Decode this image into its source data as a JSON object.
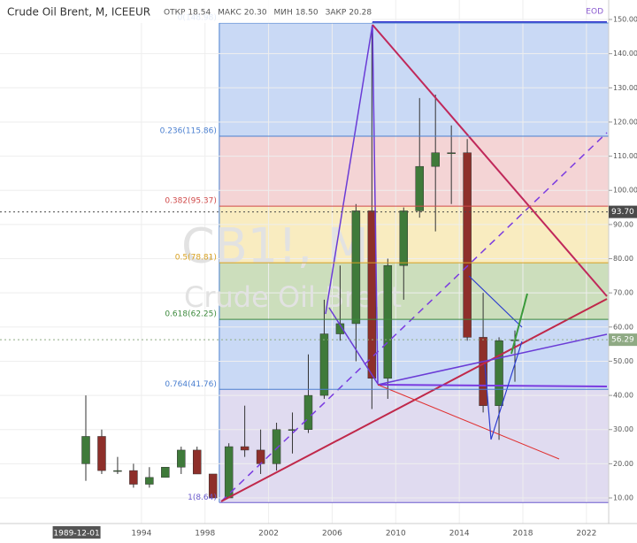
{
  "header": {
    "symbol": "Crude Oil Brent, M, ICEEUR",
    "ohlc": [
      {
        "name": "ОТКР",
        "value": "18.54"
      },
      {
        "name": "МАКС",
        "value": "20.30"
      },
      {
        "name": "МИН",
        "value": "18.50"
      },
      {
        "name": "ЗАКР",
        "value": "20.28"
      }
    ],
    "eod": "EOD"
  },
  "watermark": {
    "ticker": "CB1!, M",
    "name": "Crude Oil Brent"
  },
  "chart_data": {
    "type": "candlestick",
    "x": [
      1990.5,
      1991.5,
      1992.5,
      1993.5,
      1994.5,
      1995.5,
      1996.5,
      1997.5,
      1998.5,
      1999.5,
      2000.5,
      2001.5,
      2002.5,
      2003.5,
      2004.5,
      2005.5,
      2006.5,
      2007.5,
      2008.5,
      2009.5,
      2010.5,
      2011.5,
      2012.5,
      2013.5,
      2014.5,
      2015.5,
      2016.5,
      2017.5
    ],
    "open": [
      20,
      28,
      18,
      18,
      14,
      16,
      19,
      24,
      17,
      10,
      25,
      24,
      20,
      30,
      30,
      40,
      58,
      61,
      94,
      45,
      78,
      94,
      107,
      111,
      111,
      57,
      37,
      56
    ],
    "high": [
      40,
      30,
      22,
      20,
      19,
      19,
      25,
      25,
      17,
      26,
      37,
      30,
      32,
      35,
      52,
      68,
      78,
      96,
      148,
      80,
      95,
      127,
      128,
      119,
      115,
      70,
      57,
      59
    ],
    "low": [
      15,
      17,
      17,
      13,
      13,
      16,
      17,
      17,
      10,
      10,
      22,
      17,
      18,
      23,
      29,
      39,
      56,
      50,
      36,
      39,
      68,
      92,
      88,
      96,
      56,
      35,
      27,
      44
    ],
    "close": [
      28,
      18,
      18,
      14,
      16,
      19,
      24,
      17,
      10,
      25,
      24,
      20,
      30,
      30,
      40,
      58,
      61,
      94,
      45,
      78,
      94,
      107,
      111,
      111,
      57,
      37,
      56,
      56.29
    ],
    "up_color": "#3f7a3a",
    "down_color": "#8e2f2a",
    "xlim": [
      1985.1,
      2023.4
    ],
    "ylim": [
      2.5,
      155.7
    ],
    "xticks": [
      1994,
      1998,
      2002,
      2006,
      2010,
      2014,
      2018,
      2022
    ],
    "yticks": [
      {
        "value": 10,
        "label": "10.00"
      },
      {
        "value": 20,
        "label": "20.00"
      },
      {
        "value": 30,
        "label": "30.00"
      },
      {
        "value": 40,
        "label": "40.00"
      },
      {
        "value": 50,
        "label": "50.00"
      },
      {
        "value": 60,
        "label": "60.00"
      },
      {
        "value": 70,
        "label": "70.00"
      },
      {
        "value": 80,
        "label": "80.00"
      },
      {
        "value": 90,
        "label": "90.00"
      },
      {
        "value": 100,
        "label": "100.00"
      },
      {
        "value": 110,
        "label": "110.00"
      },
      {
        "value": 120,
        "label": "120.00"
      },
      {
        "value": 130,
        "label": "130.00"
      },
      {
        "value": 140,
        "label": "140.00"
      },
      {
        "value": 150,
        "label": "150.00"
      }
    ],
    "crosshair_date": {
      "value": 1989.92,
      "label": "1989-12-01"
    },
    "price_labels": [
      {
        "value": 93.7,
        "label": "93.70",
        "color": "#4a4a4a"
      },
      {
        "value": 56.29,
        "label": "56.29",
        "color": "#8faa84"
      }
    ],
    "fib_levels": [
      {
        "price": 148.98,
        "label": "0(148.98)",
        "color": "#4a7fd0",
        "zone": "#c3d5f4"
      },
      {
        "price": 115.86,
        "label": "0.236(115.86)",
        "color": "#4a7fd0",
        "zone": "#f3cfd0"
      },
      {
        "price": 95.37,
        "label": "0.382(95.37)",
        "color": "#d04a4a",
        "zone": "#f8eab9"
      },
      {
        "price": 78.81,
        "label": "0.5(78.81)",
        "color": "#d8a020",
        "zone": "#c7dab5"
      },
      {
        "price": 62.25,
        "label": "0.618(62.25)",
        "color": "#3d8a3d",
        "zone": "#c3d5f4"
      },
      {
        "price": 41.76,
        "label": "0.764(41.76)",
        "color": "#4a7fd0",
        "zone": "#ddd7ee"
      },
      {
        "price": 8.64,
        "label": "1(8.64)",
        "color": "#6a5acd"
      }
    ]
  }
}
